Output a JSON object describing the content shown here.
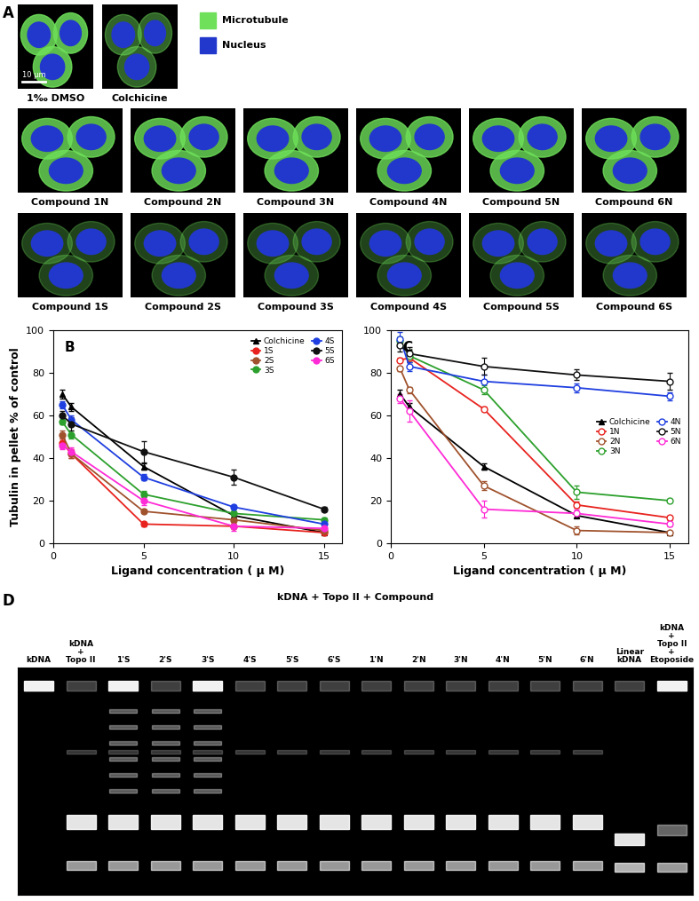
{
  "chart_data": [
    {
      "type": "line",
      "title": "B",
      "x_label": "Ligand concentration ( μ M)",
      "y_label": "Tubulin in pellet % of control",
      "x": [
        0.5,
        1,
        5,
        10,
        15
      ],
      "xlim": [
        0,
        16
      ],
      "xticks": [
        0,
        5,
        10,
        15
      ],
      "ylim": [
        0,
        100
      ],
      "yticks": [
        0,
        20,
        40,
        60,
        80,
        100
      ],
      "legend": "upper right",
      "series": [
        {
          "name": "Colchicine",
          "color": "#000000",
          "marker": "triangle",
          "values": [
            70,
            64,
            36,
            13,
            5
          ],
          "errors": [
            2,
            2,
            1.5,
            1,
            0.5
          ]
        },
        {
          "name": "1S",
          "color": "#e8231f",
          "marker": "circle",
          "values": [
            47,
            42,
            9,
            8,
            5
          ],
          "errors": [
            2,
            2,
            1,
            1,
            0.5
          ]
        },
        {
          "name": "2S",
          "color": "#a0522d",
          "marker": "circle",
          "values": [
            51,
            42,
            15,
            11,
            6
          ],
          "errors": [
            2,
            2,
            1,
            1,
            0.5
          ]
        },
        {
          "name": "3S",
          "color": "#2ca02c",
          "marker": "circle",
          "values": [
            57,
            51,
            23,
            14,
            11
          ],
          "errors": [
            1,
            2,
            1.5,
            1,
            1
          ]
        },
        {
          "name": "4S",
          "color": "#1f3fe0",
          "marker": "circle",
          "values": [
            65,
            58,
            31,
            17,
            9
          ],
          "errors": [
            1.5,
            2,
            1.5,
            1,
            0.5
          ]
        },
        {
          "name": "5S",
          "color": "#111111",
          "marker": "circle",
          "values": [
            60,
            56,
            43,
            31,
            16
          ],
          "errors": [
            2,
            3,
            5,
            3.5,
            1
          ]
        },
        {
          "name": "6S",
          "color": "#ff2bd6",
          "marker": "circle",
          "values": [
            46,
            43,
            20,
            8,
            7
          ],
          "errors": [
            2,
            2,
            2,
            2,
            1
          ]
        }
      ]
    },
    {
      "type": "line",
      "title": "C",
      "x_label": "Ligand concentration ( μ M)",
      "x": [
        0.5,
        1,
        5,
        10,
        15
      ],
      "xlim": [
        0,
        16
      ],
      "xticks": [
        0,
        5,
        10,
        15
      ],
      "ylim": [
        0,
        100
      ],
      "yticks": [
        0,
        20,
        40,
        60,
        80,
        100
      ],
      "legend": "center right",
      "series": [
        {
          "name": "Colchicine",
          "color": "#000000",
          "marker": "triangle",
          "values": [
            70,
            64,
            36,
            13,
            5
          ],
          "errors": [
            2,
            2,
            1.5,
            1,
            0.5
          ]
        },
        {
          "name": "1N",
          "color": "#e8231f",
          "marker": "open circle",
          "values": [
            86,
            87,
            63,
            18,
            12
          ],
          "errors": [
            1,
            2,
            1,
            1.5,
            1
          ]
        },
        {
          "name": "2N",
          "color": "#a0522d",
          "marker": "open circle",
          "values": [
            82,
            72,
            27,
            6,
            5
          ],
          "errors": [
            1,
            1.5,
            2,
            2,
            1
          ]
        },
        {
          "name": "3N",
          "color": "#2ca02c",
          "marker": "open circle",
          "values": [
            95,
            88,
            72,
            24,
            20
          ],
          "errors": [
            2,
            3,
            2,
            3,
            1
          ]
        },
        {
          "name": "4N",
          "color": "#1f3fe0",
          "marker": "open circle",
          "values": [
            96,
            83,
            76,
            73,
            69
          ],
          "errors": [
            3,
            2,
            3,
            2,
            2
          ]
        },
        {
          "name": "5N",
          "color": "#111111",
          "marker": "open circle",
          "values": [
            93,
            89,
            83,
            79,
            76
          ],
          "errors": [
            3,
            3,
            4,
            2.5,
            4
          ]
        },
        {
          "name": "6N",
          "color": "#ff2bd6",
          "marker": "open circle",
          "values": [
            68,
            62,
            16,
            14,
            9
          ],
          "errors": [
            2,
            5,
            4,
            2,
            1
          ]
        }
      ]
    }
  ],
  "panel_a": {
    "label": "A",
    "channels": [
      {
        "name": "Microtubule",
        "color": "#6ee05a"
      },
      {
        "name": "Nucleus",
        "color": "#2238cc"
      }
    ],
    "scale_bar": "10 μm",
    "rows": [
      [
        "1‰ DMSO",
        "Colchicine"
      ],
      [
        "Compound 1N",
        "Compound 2N",
        "Compound 3N",
        "Compound 4N",
        "Compound 5N",
        "Compound 6N"
      ],
      [
        "Compound 1S",
        "Compound 2S",
        "Compound 3S",
        "Compound 4S",
        "Compound 5S",
        "Compound 6S"
      ]
    ]
  },
  "panel_d": {
    "label": "D",
    "group_header": "kDNA + Topo II + Compound",
    "lanes_before": [
      "kDNA",
      "kDNA + Topo II"
    ],
    "compound_lanes": [
      "1'S",
      "2'S",
      "3'S",
      "4'S",
      "5'S",
      "6'S",
      "1'N",
      "2'N",
      "3'N",
      "4'N",
      "5'N",
      "6'N"
    ],
    "lanes_after": [
      "Linear kDNA",
      "kDNA + Topo II + Etoposide"
    ]
  }
}
